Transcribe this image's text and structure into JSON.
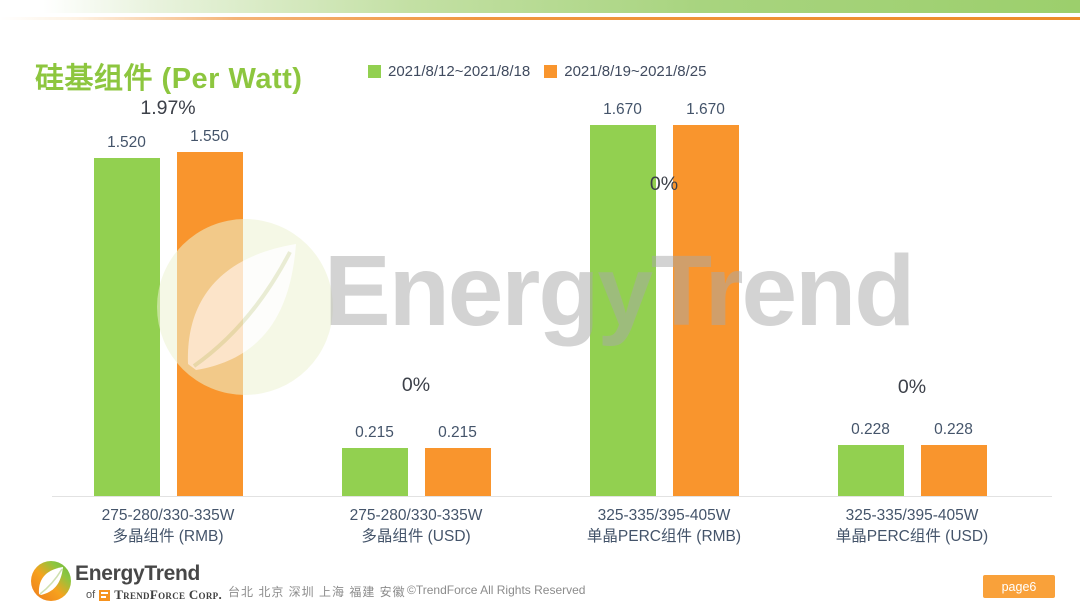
{
  "slide": {
    "title": "硅基组件 (Per Watt)",
    "page_label": "page6"
  },
  "legend": {
    "items": [
      {
        "label": "2021/8/12~2021/8/18",
        "color": "#92d050"
      },
      {
        "label": "2021/8/19~2021/8/25",
        "color": "#f9952d"
      }
    ]
  },
  "chart_data": {
    "type": "bar",
    "title": "硅基组件 (Per Watt)",
    "categories": [
      "275-280/330-335W 多晶组件 (RMB)",
      "275-280/330-335W 多晶组件 (USD)",
      "325-335/395-405W 单晶PERC组件 (RMB)",
      "325-335/395-405W 单晶PERC组件 (USD)"
    ],
    "categories_lines": [
      [
        "275-280/330-335W",
        "多晶组件 (RMB)"
      ],
      [
        "275-280/330-335W",
        "多晶组件 (USD)"
      ],
      [
        "325-335/395-405W",
        "单晶PERC组件 (RMB)"
      ],
      [
        "325-335/395-405W",
        "单晶PERC组件 (USD)"
      ]
    ],
    "series": [
      {
        "name": "2021/8/12~2021/8/18",
        "color": "#92d050",
        "values": [
          1.52,
          0.215,
          1.67,
          0.228
        ],
        "labels": [
          "1.520",
          "0.215",
          "1.670",
          "0.228"
        ]
      },
      {
        "name": "2021/8/19~2021/8/25",
        "color": "#f9952d",
        "values": [
          1.55,
          0.215,
          1.67,
          0.228
        ],
        "labels": [
          "1.550",
          "0.215",
          "1.670",
          "0.228"
        ]
      }
    ],
    "change_labels": [
      "1.97%",
      "0%",
      "0%",
      "0%"
    ],
    "ylim": [
      0,
      1.67
    ],
    "grid": false,
    "legend_position": "top"
  },
  "watermark": {
    "text": "EnergyTrend"
  },
  "footer": {
    "logo_text": "EnergyTrend",
    "logo_sub_prefix": "of",
    "logo_sub": "TrendForce Corp.",
    "locations": "台北 北京 深圳 上海 福建 安徽",
    "copyright": "©TrendForce All Rights Reserved",
    "page": "page6"
  }
}
